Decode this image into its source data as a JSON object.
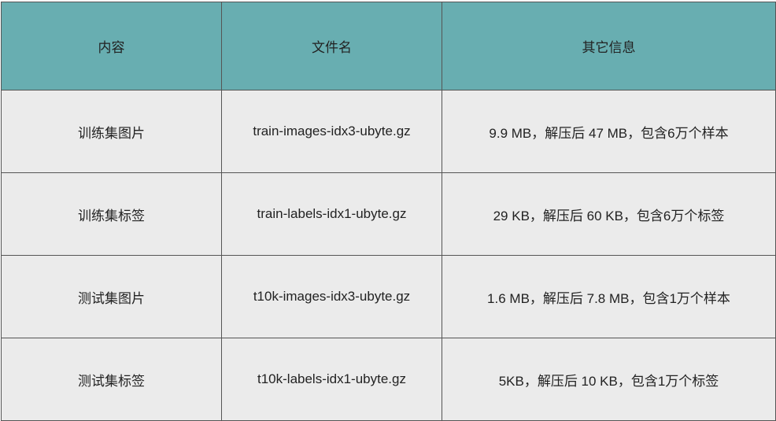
{
  "headers": [
    "内容",
    "文件名",
    "其它信息"
  ],
  "rows": [
    [
      "训练集图片",
      "train-images-idx3-ubyte.gz",
      "9.9 MB，解压后 47 MB，包含6万个样本"
    ],
    [
      "训练集标签",
      "train-labels-idx1-ubyte.gz",
      "29 KB，解压后 60 KB，包含6万个标签"
    ],
    [
      "测试集图片",
      "t10k-images-idx3-ubyte.gz",
      "1.6 MB，解压后 7.8 MB，包含1万个样本"
    ],
    [
      "测试集标签",
      "t10k-labels-idx1-ubyte.gz",
      "5KB，解压后 10 KB，包含1万个标签"
    ]
  ],
  "colors": {
    "header_bg": "#68aeb1",
    "row_bg": "#ebebeb"
  }
}
